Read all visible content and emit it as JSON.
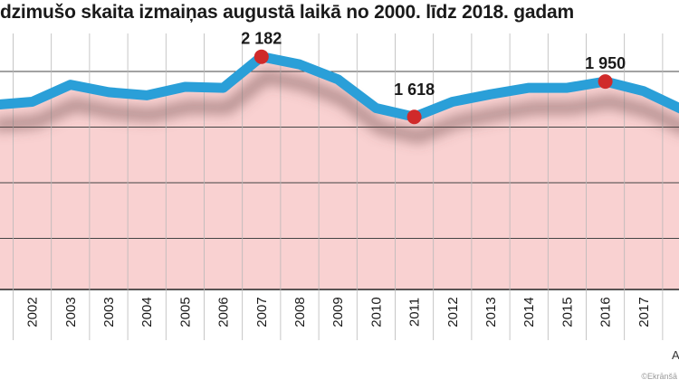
{
  "chart_data": {
    "type": "area",
    "title": "dzimušo skaita izmaiņas augustā laikā no 2000. līdz 2018. gadam",
    "categories": [
      "",
      "2002",
      "2003",
      "2003",
      "2004",
      "2005",
      "2006",
      "2007",
      "2008",
      "2009",
      "2010",
      "2011",
      "2012",
      "2013",
      "2014",
      "2015",
      "2016",
      "2017",
      ""
    ],
    "values": [
      1730,
      1760,
      1920,
      1850,
      1820,
      1900,
      1890,
      2182,
      2110,
      1970,
      1700,
      1618,
      1760,
      1830,
      1890,
      1890,
      1950,
      1860,
      1690
    ],
    "data_labels": [
      {
        "index": 7,
        "text": "2 182"
      },
      {
        "index": 11,
        "text": "1 618"
      },
      {
        "index": 16,
        "text": "1 950"
      }
    ],
    "ylim": [
      0,
      2400
    ],
    "grid": true,
    "xlabel": "A",
    "ylabel": "",
    "colors": {
      "line": "#2a9fd8",
      "fill": "#f9d1d1",
      "marker": "#d02a2a",
      "grid": "#444444",
      "shadow": "#6e4d4d"
    }
  },
  "credit": "©Ekrānšā"
}
